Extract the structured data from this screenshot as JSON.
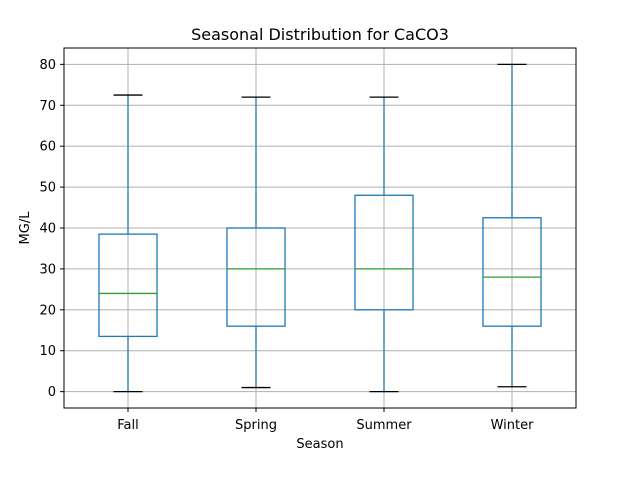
{
  "chart_data": {
    "type": "box",
    "title": "Seasonal Distribution for CaCO3",
    "xlabel": "Season",
    "ylabel": "MG/L",
    "categories": [
      "Fall",
      "Spring",
      "Summer",
      "Winter"
    ],
    "boxes": [
      {
        "category": "Fall",
        "whisker_low": 0,
        "q1": 13.5,
        "median": 24,
        "q3": 38.5,
        "whisker_high": 72.5
      },
      {
        "category": "Spring",
        "whisker_low": 1,
        "q1": 16,
        "median": 30,
        "q3": 40,
        "whisker_high": 72
      },
      {
        "category": "Summer",
        "whisker_low": 0,
        "q1": 20,
        "median": 30,
        "q3": 48,
        "whisker_high": 72
      },
      {
        "category": "Winter",
        "whisker_low": 1.2,
        "q1": 16,
        "median": 28,
        "q3": 42.5,
        "whisker_high": 80
      }
    ],
    "yticks": [
      0,
      10,
      20,
      30,
      40,
      50,
      60,
      70,
      80
    ],
    "ylim": [
      -4,
      84
    ],
    "grid": true,
    "box_color": "#1f77b4",
    "median_color": "#2ca02c",
    "grid_color": "#b0b0b0"
  }
}
